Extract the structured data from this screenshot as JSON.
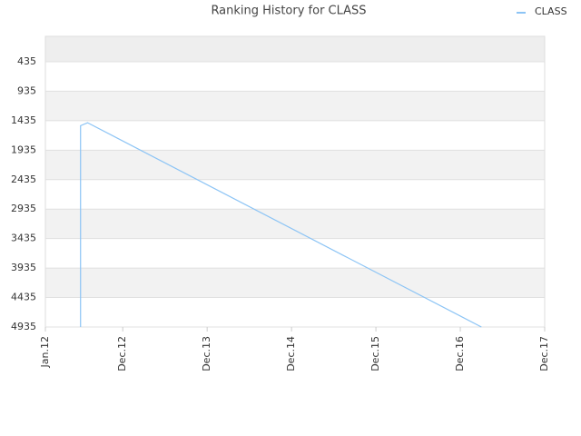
{
  "chart_data": {
    "type": "line",
    "title": "Ranking History for CLASS",
    "x": [
      "2012-06",
      "2012-06",
      "2012-07",
      "2017-03"
    ],
    "series": [
      {
        "name": "CLASS",
        "color": "#8cc4f5",
        "values": [
          4935,
          1520,
          1470,
          4935
        ]
      }
    ],
    "xlim": [
      "2012-01",
      "2017-12"
    ],
    "xticks": [
      {
        "value": "2012-01",
        "label": "Jan.12"
      },
      {
        "value": "2012-12",
        "label": "Dec.12"
      },
      {
        "value": "2013-12",
        "label": "Dec.13"
      },
      {
        "value": "2014-12",
        "label": "Dec.14"
      },
      {
        "value": "2015-12",
        "label": "Dec.15"
      },
      {
        "value": "2016-12",
        "label": "Dec.16"
      },
      {
        "value": "2017-12",
        "label": "Dec.17"
      }
    ],
    "ylim": [
      4935,
      4
    ],
    "yticks": [
      435,
      935,
      1435,
      1935,
      2435,
      2935,
      3435,
      3935,
      4435,
      4935
    ],
    "y_inverted": true,
    "grid": true,
    "legend": "top-right"
  }
}
